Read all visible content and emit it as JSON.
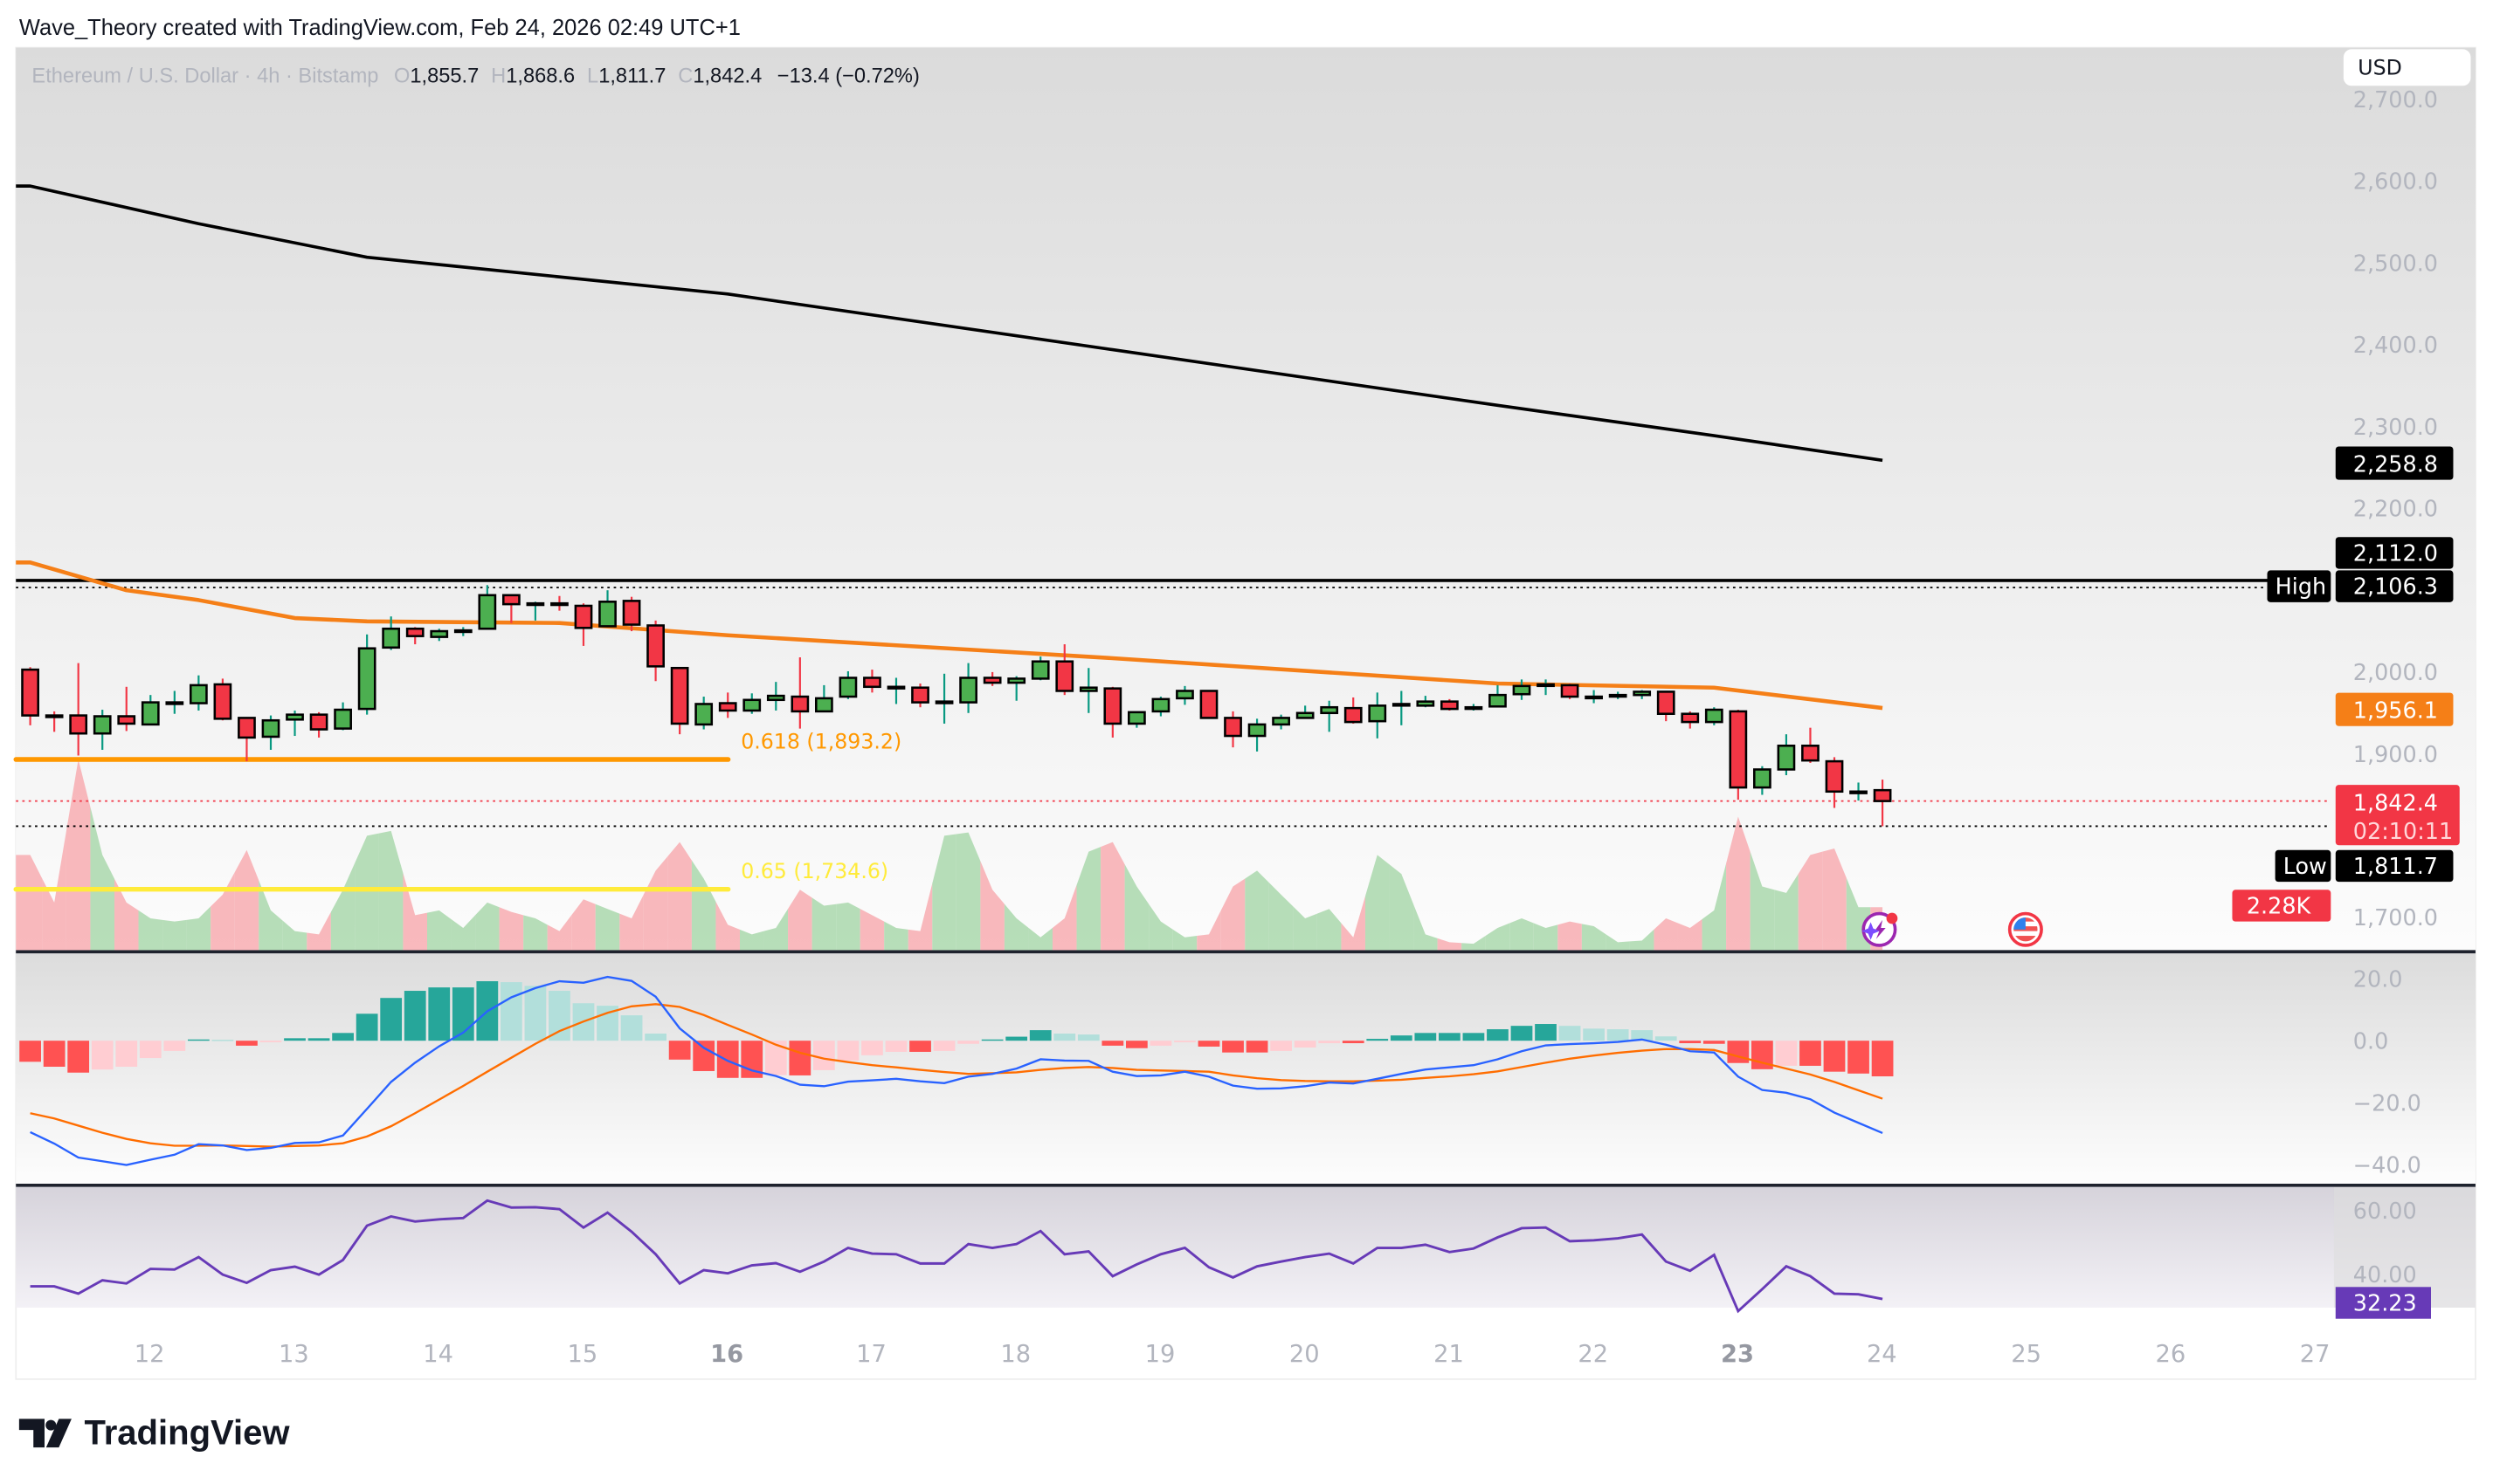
{
  "header": {
    "attribution": "Wave_Theory created with TradingView.com, Feb 24, 2026 02:49 UTC+1"
  },
  "legend": {
    "symbol": "Ethereum / U.S. Dollar · 4h · Bitstamp",
    "o_label": "O",
    "open": "1,855.7",
    "h_label": "H",
    "high": "1,868.6",
    "l_label": "L",
    "low": "1,811.7",
    "c_label": "C",
    "close": "1,842.4",
    "change": "−13.4 (−0.72%)"
  },
  "currency_button": "USD",
  "price_axis": {
    "ticks": [
      "2,700.0",
      "2,600.0",
      "2,500.0",
      "2,400.0",
      "2,300.0",
      "2,200.0",
      "2,000.0",
      "1,900.0",
      "1,700.0"
    ],
    "tick_values": [
      2700,
      2600,
      2500,
      2400,
      2300,
      2200,
      2000,
      1900,
      1700
    ]
  },
  "price_labels": {
    "ema_black": "2,258.8",
    "line_2112": "2,112.0",
    "high_tag": "High",
    "high": "2,106.3",
    "ema_orange": "1,956.1",
    "last_price": "1,842.4",
    "countdown": "02:10:11",
    "low_tag": "Low",
    "low": "1,811.7",
    "volume": "2.28K"
  },
  "fib": [
    {
      "label": "0.618 (1,893.2)",
      "price": 1893.2,
      "color": "#ff9800"
    },
    {
      "label": "0.65 (1,734.6)",
      "price": 1734.6,
      "color": "#ffeb3b"
    }
  ],
  "levels": {
    "high_line": 2112.0,
    "high": 2106.3,
    "low": 1811.7,
    "last": 1842.4
  },
  "macd_axis": [
    "20.0",
    "0.0",
    "−20.0",
    "−40.0"
  ],
  "macd_axis_values": [
    20,
    0,
    -20,
    -40
  ],
  "rsi_axis": [
    "60.00",
    "40.00"
  ],
  "rsi_axis_values": [
    60,
    40
  ],
  "rsi_label": "32.23",
  "time_axis": {
    "ticks": [
      "12",
      "13",
      "14",
      "15",
      "16",
      "17",
      "18",
      "19",
      "20",
      "21",
      "22",
      "23",
      "24",
      "25",
      "26",
      "27"
    ],
    "bold": [
      "16",
      "23"
    ]
  },
  "footer": {
    "logo_text": "TradingView"
  },
  "icons": [
    "ai-lightning-icon",
    "us-flag-icon"
  ],
  "colors": {
    "up": "#4caf50",
    "down": "#f23645",
    "wick_up": "#089981",
    "wick_down": "#f23645",
    "ema_black": "#000000",
    "ema_orange": "#f57f17",
    "macd": "#2962ff",
    "signal": "#ff6d00",
    "hist_up_strong": "#26a69a",
    "hist_up_weak": "#b2dfdb",
    "hist_down_strong": "#ff5252",
    "hist_down_weak": "#ffcdd2",
    "rsi": "#673ab7",
    "vol_up": "#a5d6a7",
    "vol_down": "#f7a8ad"
  },
  "chart_data": {
    "type": "candlestick",
    "interval": "4h",
    "columns": [
      "time",
      "open",
      "high",
      "low",
      "close",
      "volume_k"
    ],
    "candles": [
      [
        "02-11 04:00",
        2003,
        2006,
        1935,
        1947,
        5.06
      ],
      [
        "02-11 08:00",
        1947,
        1952,
        1927,
        1946,
        2.53
      ],
      [
        "02-11 12:00",
        1947,
        2011,
        1898,
        1925,
        10.13
      ],
      [
        "02-11 16:00",
        1925,
        1954,
        1905,
        1946,
        5.06
      ],
      [
        "02-11 20:00",
        1946,
        1982,
        1928,
        1937,
        2.53
      ],
      [
        "02-12 00:00",
        1936,
        1972,
        1935,
        1963,
        1.69
      ],
      [
        "02-12 04:00",
        1963,
        1977,
        1949,
        1963,
        1.52
      ],
      [
        "02-12 08:00",
        1962,
        1996,
        1953,
        1984,
        1.69
      ],
      [
        "02-12 12:00",
        1985,
        1992,
        1941,
        1943,
        2.95
      ],
      [
        "02-12 16:00",
        1944,
        1945,
        1891,
        1920,
        5.32
      ],
      [
        "02-12 20:00",
        1921,
        1947,
        1905,
        1941,
        2.11
      ],
      [
        "02-13 00:00",
        1942,
        1953,
        1922,
        1948,
        1.01
      ],
      [
        "02-13 04:00",
        1948,
        1951,
        1920,
        1930,
        0.84
      ],
      [
        "02-13 08:00",
        1931,
        1963,
        1929,
        1954,
        3.21
      ],
      [
        "02-13 12:00",
        1955,
        2046,
        1948,
        2029,
        6.08
      ],
      [
        "02-13 16:00",
        2030,
        2068,
        2027,
        2053,
        6.33
      ],
      [
        "02-13 20:00",
        2053,
        2055,
        2034,
        2044,
        1.86
      ],
      [
        "02-14 00:00",
        2043,
        2053,
        2038,
        2050,
        2.11
      ],
      [
        "02-14 04:00",
        2050,
        2055,
        2044,
        2051,
        1.18
      ],
      [
        "02-14 08:00",
        2053,
        2106.3,
        2052,
        2094,
        2.53
      ],
      [
        "02-14 12:00",
        2094,
        2094,
        2060,
        2083,
        2.03
      ],
      [
        "02-14 16:00",
        2084,
        2086,
        2063,
        2084,
        1.69
      ],
      [
        "02-14 20:00",
        2084,
        2093,
        2075,
        2083.5,
        1.01
      ],
      [
        "02-15 00:00",
        2081,
        2084,
        2032,
        2054,
        2.7
      ],
      [
        "02-15 04:00",
        2056,
        2100,
        2056,
        2086,
        2.19
      ],
      [
        "02-15 08:00",
        2087,
        2092,
        2050,
        2058,
        1.69
      ],
      [
        "02-15 12:00",
        2057,
        2063,
        1989,
        2007,
        4.22
      ],
      [
        "02-15 16:00",
        2005,
        2005,
        1924,
        1937,
        5.74
      ],
      [
        "02-15 20:00",
        1936,
        1970,
        1930,
        1961,
        3.8
      ],
      [
        "02-16 00:00",
        1962,
        1975,
        1944,
        1953,
        1.35
      ],
      [
        "02-16 04:00",
        1953,
        1974,
        1949,
        1966,
        0.84
      ],
      [
        "02-16 08:00",
        1966,
        1988,
        1953,
        1971,
        1.18
      ],
      [
        "02-16 12:00",
        1970,
        2018,
        1931,
        1952,
        3.21
      ],
      [
        "02-16 16:00",
        1952,
        1984,
        1951,
        1968,
        2.36
      ],
      [
        "02-16 20:00",
        1970,
        2001,
        1967,
        1993,
        2.53
      ],
      [
        "02-17 00:00",
        1993,
        2003,
        1975,
        1982,
        1.86
      ],
      [
        "02-17 04:00",
        1982,
        1993,
        1961,
        1982,
        1.18
      ],
      [
        "02-17 08:00",
        1981,
        1986,
        1957,
        1963,
        1.01
      ],
      [
        "02-17 12:00",
        1964,
        1998,
        1937,
        1964,
        6.08
      ],
      [
        "02-17 16:00",
        1963,
        2011,
        1950,
        1993,
        6.25
      ],
      [
        "02-17 20:00",
        1993,
        2000,
        1983,
        1987,
        3.21
      ],
      [
        "02-18 00:00",
        1987,
        1995,
        1965,
        1992,
        1.69
      ],
      [
        "02-18 04:00",
        1992,
        2019,
        1990,
        2013,
        0.68
      ],
      [
        "02-18 08:00",
        2013,
        2034,
        1972,
        1977,
        1.69
      ],
      [
        "02-18 12:00",
        1977,
        2005,
        1950,
        1981,
        5.23
      ],
      [
        "02-18 16:00",
        1980,
        1982,
        1920,
        1937,
        5.74
      ],
      [
        "02-18 20:00",
        1937,
        1951,
        1932,
        1951,
        3.38
      ],
      [
        "02-19 00:00",
        1952,
        1970,
        1946,
        1967,
        1.52
      ],
      [
        "02-19 04:00",
        1968,
        1983,
        1960,
        1977,
        0.68
      ],
      [
        "02-19 08:00",
        1977,
        1978,
        1944,
        1944,
        0.84
      ],
      [
        "02-19 12:00",
        1944,
        1952,
        1908,
        1922,
        3.38
      ],
      [
        "02-19 16:00",
        1922,
        1943,
        1903,
        1936,
        4.22
      ],
      [
        "02-19 20:00",
        1936,
        1948,
        1930,
        1944,
        2.95
      ],
      [
        "02-20 00:00",
        1944,
        1959,
        1944,
        1950,
        1.69
      ],
      [
        "02-20 04:00",
        1950,
        1965,
        1927,
        1957,
        2.19
      ],
      [
        "02-20 08:00",
        1956,
        1969,
        1937,
        1939,
        0.68
      ],
      [
        "02-20 12:00",
        1940,
        1975,
        1919,
        1959,
        5.06
      ],
      [
        "02-20 16:00",
        1960,
        1977,
        1935,
        1961,
        4.05
      ],
      [
        "02-20 20:00",
        1959,
        1971,
        1957,
        1964,
        0.84
      ],
      [
        "02-21 00:00",
        1964,
        1967,
        1953,
        1955,
        0.42
      ],
      [
        "02-21 04:00",
        1956,
        1961,
        1953,
        1957,
        0.34
      ],
      [
        "02-21 08:00",
        1958,
        1984,
        1958,
        1972,
        1.18
      ],
      [
        "02-21 12:00",
        1973,
        1991,
        1966,
        1983,
        1.69
      ],
      [
        "02-21 16:00",
        1985,
        1991,
        1972,
        1985,
        1.18
      ],
      [
        "02-21 20:00",
        1984,
        1986,
        1967,
        1970,
        1.52
      ],
      [
        "02-22 00:00",
        1970,
        1978,
        1962,
        1970,
        1.27
      ],
      [
        "02-22 04:00",
        1972,
        1976,
        1967,
        1972,
        0.42
      ],
      [
        "02-22 08:00",
        1972,
        1978,
        1967,
        1976,
        0.51
      ],
      [
        "02-22 12:00",
        1976,
        1977,
        1940,
        1949,
        1.69
      ],
      [
        "02-22 16:00",
        1949,
        1952,
        1931,
        1939,
        1.18
      ],
      [
        "02-22 20:00",
        1939,
        1957,
        1935,
        1954,
        2.11
      ],
      [
        "02-23 00:00",
        1952,
        1954,
        1844,
        1859,
        7.09
      ],
      [
        "02-23 04:00",
        1859,
        1885,
        1850,
        1881,
        3.38
      ],
      [
        "02-23 08:00",
        1881,
        1924,
        1874,
        1910,
        3.04
      ],
      [
        "02-23 12:00",
        1910,
        1932,
        1889,
        1892,
        5.06
      ],
      [
        "02-23 16:00",
        1891,
        1896,
        1834,
        1854,
        5.4
      ],
      [
        "02-23 20:00",
        1854,
        1865,
        1843,
        1854,
        2.28
      ],
      [
        "02-24 00:00",
        1855.7,
        1868.6,
        1811.7,
        1842.4,
        2.28
      ]
    ],
    "moving_averages": [
      {
        "color": "#000000",
        "points": [
          [
            "02-11 04:00",
            2594
          ],
          [
            "02-12 08:00",
            2548
          ],
          [
            "02-13 12:00",
            2507
          ],
          [
            "02-16 00:00",
            2462
          ],
          [
            "02-18 16:00",
            2394
          ],
          [
            "02-21 08:00",
            2326
          ],
          [
            "02-22 20:00",
            2289
          ],
          [
            "02-24 00:00",
            2258.8
          ]
        ]
      },
      {
        "color": "#f57f17",
        "points": [
          [
            "02-11 04:00",
            2134
          ],
          [
            "02-11 20:00",
            2100
          ],
          [
            "02-12 08:00",
            2088
          ],
          [
            "02-13 00:00",
            2066
          ],
          [
            "02-13 12:00",
            2062
          ],
          [
            "02-14 20:00",
            2060
          ],
          [
            "02-16 00:00",
            2045
          ],
          [
            "02-18 16:00",
            2017
          ],
          [
            "02-21 08:00",
            1986
          ],
          [
            "02-22 20:00",
            1981
          ],
          [
            "02-24 00:00",
            1956.1
          ]
        ]
      }
    ],
    "macd": {
      "histogram": [
        -6.8,
        -8.4,
        -10.3,
        -9.3,
        -8.4,
        -5.6,
        -3.3,
        0.4,
        0.3,
        -1.6,
        -0.5,
        0.8,
        0.8,
        2.5,
        8.7,
        13.8,
        16.1,
        17.2,
        17.2,
        19.2,
        18.9,
        17.7,
        16.1,
        12.1,
        11.3,
        8.2,
        2.3,
        -6.1,
        -9.8,
        -12.0,
        -12.0,
        -11.1,
        -11.2,
        -9.5,
        -6.4,
        -4.7,
        -3.6,
        -3.6,
        -3.3,
        -1.0,
        0.4,
        1.3,
        3.4,
        2.3,
        2.0,
        -1.6,
        -2.4,
        -1.6,
        -0.5,
        -1.9,
        -3.8,
        -3.8,
        -3.3,
        -2.2,
        -0.8,
        -0.8,
        0.6,
        1.7,
        2.5,
        2.5,
        2.5,
        3.7,
        4.8,
        5.4,
        4.8,
        3.9,
        3.7,
        3.4,
        1.4,
        -0.8,
        -1.0,
        -7.2,
        -9.2,
        -8.1,
        -8.1,
        -10.0,
        -10.6,
        -11.5
      ],
      "macd": [
        -29.5,
        -33.2,
        -37.7,
        -38.9,
        -40.1,
        -38.4,
        -36.8,
        -33.4,
        -33.8,
        -35.3,
        -34.6,
        -33.0,
        -32.8,
        -30.6,
        -22.0,
        -13.3,
        -7.1,
        -1.8,
        2.6,
        9.5,
        14.0,
        17.0,
        19.2,
        18.7,
        20.6,
        19.3,
        14.2,
        4.0,
        -2.3,
        -6.5,
        -9.6,
        -11.4,
        -14.2,
        -14.7,
        -13.2,
        -12.8,
        -12.3,
        -13.1,
        -13.7,
        -11.6,
        -10.7,
        -9.0,
        -6.0,
        -6.4,
        -6.5,
        -10.0,
        -11.4,
        -11.2,
        -10.0,
        -11.6,
        -14.5,
        -15.5,
        -15.4,
        -14.7,
        -13.5,
        -13.8,
        -12.3,
        -10.7,
        -9.3,
        -8.6,
        -7.9,
        -6.0,
        -3.4,
        -1.5,
        -1.1,
        -0.8,
        -0.4,
        0.4,
        -1.3,
        -3.4,
        -3.8,
        -11.6,
        -15.9,
        -16.8,
        -18.9,
        -23.2,
        -26.5,
        -29.8
      ],
      "signal": [
        -23.4,
        -25.1,
        -27.4,
        -29.7,
        -31.7,
        -33.1,
        -33.9,
        -33.9,
        -33.8,
        -34.0,
        -34.2,
        -34.0,
        -33.8,
        -33.1,
        -30.9,
        -27.6,
        -23.4,
        -19.0,
        -14.6,
        -10.0,
        -5.5,
        -1.0,
        3.1,
        6.2,
        9.0,
        11.1,
        11.8,
        10.9,
        8.3,
        5.1,
        2.0,
        -1.3,
        -3.9,
        -5.8,
        -6.9,
        -7.9,
        -8.6,
        -9.4,
        -10.1,
        -10.7,
        -10.5,
        -10.2,
        -9.4,
        -8.8,
        -8.5,
        -8.8,
        -9.4,
        -9.6,
        -9.8,
        -10.0,
        -11.2,
        -12.1,
        -12.7,
        -13.0,
        -13.1,
        -13.1,
        -12.9,
        -12.6,
        -12.0,
        -11.5,
        -10.8,
        -9.9,
        -8.5,
        -7.1,
        -5.8,
        -4.8,
        -3.9,
        -3.2,
        -2.7,
        -2.7,
        -3.0,
        -5.1,
        -7.1,
        -9.0,
        -10.9,
        -13.3,
        -16.0,
        -18.7
      ],
      "ylim": [
        -40,
        20
      ]
    },
    "rsi": {
      "values": [
        36.2,
        36.2,
        33.9,
        38.1,
        37.1,
        41.7,
        41.5,
        45.4,
        39.9,
        37.3,
        41.3,
        42.4,
        39.9,
        44.5,
        55.3,
        58.2,
        56.6,
        57.3,
        57.7,
        63.2,
        61.0,
        61.1,
        60.5,
        54.7,
        59.4,
        53.4,
        46.3,
        37.1,
        41.3,
        40.3,
        42.8,
        43.5,
        40.8,
        44.0,
        48.3,
        46.5,
        46.3,
        43.4,
        43.4,
        49.5,
        48.3,
        49.5,
        53.6,
        46.3,
        47.2,
        39.4,
        43.1,
        46.3,
        48.3,
        42.2,
        39.0,
        42.5,
        44.0,
        45.4,
        46.5,
        43.4,
        48.3,
        48.3,
        49.3,
        47.0,
        48.1,
        51.6,
        54.5,
        54.7,
        50.4,
        50.7,
        51.3,
        52.5,
        44.0,
        41.1,
        46.1,
        28.4,
        35.3,
        42.5,
        39.4,
        33.9,
        33.7,
        32.23
      ]
    },
    "ylim": [
      1700,
      2700
    ],
    "grid": false
  }
}
